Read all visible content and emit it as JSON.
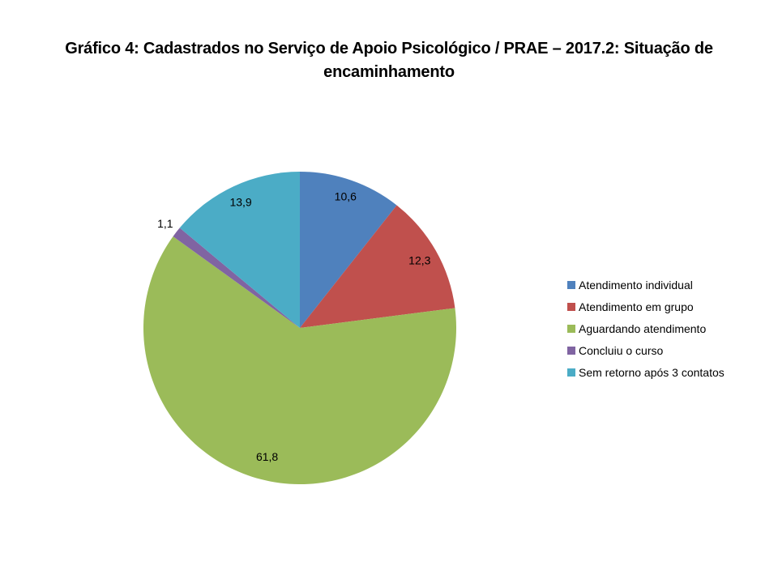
{
  "title": {
    "line1": "Gráfico 4: Cadastrados no Serviço de Apoio Psicológico / PRAE – 2017.2: Situação de",
    "line2": "encaminhamento"
  },
  "chart_data": {
    "type": "pie",
    "title": "Gráfico 4: Cadastrados no Serviço de Apoio Psicológico / PRAE – 2017.2: Situação de encaminhamento",
    "start_angle_deg": 0,
    "direction": "clockwise",
    "legend_position": "right",
    "background": "#ffffff",
    "label_decimal_separator": ",",
    "slices": [
      {
        "name": "Atendimento individual",
        "value": 10.6,
        "label": "10,6",
        "color": "#4F81BD",
        "label_placement": "inside",
        "label_radius_frac": 0.89
      },
      {
        "name": "Atendimento em grupo",
        "value": 12.3,
        "label": "12,3",
        "color": "#C0504D",
        "label_placement": "inside",
        "label_radius_frac": 0.88
      },
      {
        "name": "Aguardando atendimento",
        "value": 61.8,
        "label": "61,8",
        "color": "#9BBB59",
        "label_placement": "inside",
        "label_radius_frac": 0.85
      },
      {
        "name": "Concluiu o curso",
        "value": 1.1,
        "label": "1,1",
        "color": "#8064A2",
        "label_placement": "outside",
        "label_radius_frac": 1.09
      },
      {
        "name": "Sem retorno após 3 contatos",
        "value": 13.9,
        "label": "13,9",
        "color": "#4BACC6",
        "label_placement": "inside",
        "label_radius_frac": 0.89
      }
    ]
  }
}
